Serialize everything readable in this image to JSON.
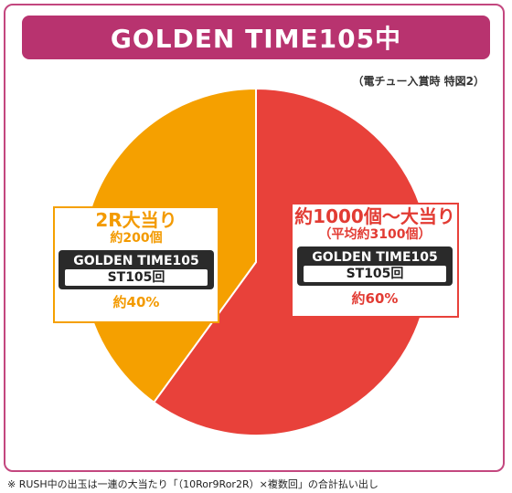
{
  "title": "GOLDEN TIME105中",
  "note": "（電チュー入賞時 特図2）",
  "footnote": "※ RUSH中の出玉は一連の大当たり「（10Ror9Ror2R）×複数回」の合計払い出し",
  "colors": {
    "frame": "#c3477f",
    "title_bg": "#b8336f",
    "slice_big": "#e8413a",
    "slice_small": "#f5a000"
  },
  "chart_data": {
    "type": "pie",
    "title": "GOLDEN TIME105中",
    "slices": [
      {
        "label": "約1000個〜大当り",
        "sublabel": "（平均約3100個）",
        "mode": "GOLDEN TIME105",
        "st": "ST105回",
        "percent_label": "約60%",
        "value": 60,
        "color": "#e8413a"
      },
      {
        "label": "2R大当り",
        "sublabel": "約200個",
        "mode": "GOLDEN TIME105",
        "st": "ST105回",
        "percent_label": "約40%",
        "value": 40,
        "color": "#f5a000"
      }
    ]
  }
}
